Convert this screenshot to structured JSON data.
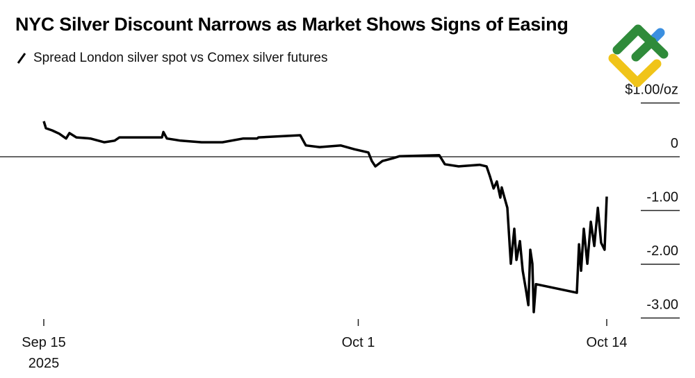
{
  "chart_data": {
    "type": "line",
    "title": "NYC Silver Discount Narrows as Market Shows Signs of Easing",
    "legend": [
      "Spread London silver spot vs Comex silver futures"
    ],
    "ylabel_unit": "$/oz",
    "ylim": [
      -3.2,
      1.0
    ],
    "y_ticks": [
      {
        "value": 1,
        "label": "$1.00/oz"
      },
      {
        "value": 0,
        "label": "0"
      },
      {
        "value": -1,
        "label": "-1.00"
      },
      {
        "value": -2,
        "label": "-2.00"
      },
      {
        "value": -3,
        "label": "-3.00"
      }
    ],
    "x_unit": "days since Sep 15 2025",
    "xlim": [
      0,
      29
    ],
    "x_ticks": [
      {
        "value": 0,
        "label": "Sep 15",
        "sublabel": "2025"
      },
      {
        "value": 16.2,
        "label": "Oct 1",
        "sublabel": ""
      },
      {
        "value": 29,
        "label": "Oct 14",
        "sublabel": ""
      }
    ],
    "series": [
      {
        "name": "Spread London silver spot vs Comex silver futures",
        "color": "#000000",
        "x": [
          0,
          0.11,
          0.43,
          0.79,
          1.15,
          1.32,
          1.68,
          2.4,
          3.11,
          3.65,
          3.9,
          6.09,
          6.16,
          6.34,
          7.05,
          8.13,
          9.2,
          10.28,
          10.99,
          11.06,
          13.21,
          13.5,
          14.21,
          15.29,
          16.0,
          16.72,
          16.9,
          17.08,
          17.44,
          17.97,
          18.33,
          20.37,
          20.66,
          21.37,
          22.45,
          22.81,
          22.99,
          23.17,
          23.34,
          23.52,
          23.59,
          23.7,
          23.88,
          24.06,
          24.24,
          24.35,
          24.53,
          24.67,
          24.85,
          24.96,
          25.06,
          25.17,
          25.24,
          25.35,
          27.46,
          27.57,
          27.68,
          27.82,
          28.0,
          28.18,
          28.36,
          28.54,
          28.71,
          28.89,
          29
        ],
        "y": [
          0.66,
          0.53,
          0.49,
          0.43,
          0.34,
          0.44,
          0.36,
          0.34,
          0.27,
          0.3,
          0.36,
          0.36,
          0.46,
          0.34,
          0.3,
          0.27,
          0.27,
          0.34,
          0.34,
          0.36,
          0.4,
          0.21,
          0.18,
          0.21,
          0.14,
          0.08,
          -0.08,
          -0.18,
          -0.08,
          -0.03,
          0.01,
          0.03,
          -0.14,
          -0.18,
          -0.15,
          -0.18,
          -0.37,
          -0.59,
          -0.46,
          -0.76,
          -0.57,
          -0.72,
          -0.95,
          -1.99,
          -1.34,
          -1.92,
          -1.57,
          -2.12,
          -2.5,
          -2.76,
          -1.73,
          -1.99,
          -2.89,
          -2.37,
          -2.53,
          -1.63,
          -2.12,
          -1.34,
          -1.99,
          -1.21,
          -1.66,
          -0.95,
          -1.6,
          -1.73,
          -0.74
        ]
      }
    ]
  },
  "logo": {
    "colors": {
      "green": "#2f8b3a",
      "yellow": "#f0c419",
      "blue": "#3b8fe0"
    }
  }
}
